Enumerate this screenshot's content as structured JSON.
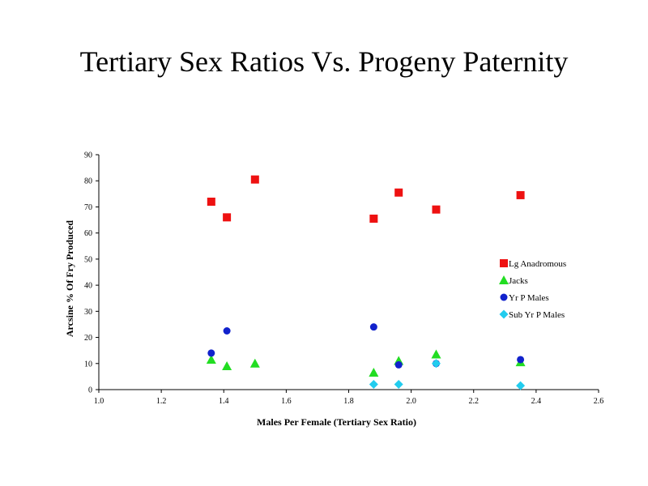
{
  "page": {
    "title": "Tertiary Sex Ratios Vs. Progeny Paternity"
  },
  "chart_data": {
    "type": "scatter",
    "title": "Tertiary Sex Ratios Vs. Progeny Paternity",
    "xlabel": "Males Per Female (Tertiary Sex Ratio)",
    "ylabel": "Arcsine % Of Fry Produced",
    "xlim": [
      1.0,
      2.6
    ],
    "ylim": [
      0,
      90
    ],
    "x_ticks": [
      "1.0",
      "1.2",
      "1.4",
      "1.6",
      "1.8",
      "2.0",
      "2.2",
      "2.4",
      "2.6"
    ],
    "y_ticks": [
      "0",
      "10",
      "20",
      "30",
      "40",
      "50",
      "60",
      "70",
      "80",
      "90"
    ],
    "grid": false,
    "legend_position": "right",
    "series": [
      {
        "name": "Lg Anadromous",
        "marker": "square",
        "color": "#ee1111",
        "points": [
          [
            1.36,
            72
          ],
          [
            1.41,
            66
          ],
          [
            1.5,
            80.5
          ],
          [
            1.88,
            65.5
          ],
          [
            1.96,
            75.5
          ],
          [
            2.08,
            69
          ],
          [
            2.35,
            74.5
          ]
        ]
      },
      {
        "name": "Jacks",
        "marker": "triangle",
        "color": "#22dd22",
        "points": [
          [
            1.36,
            11.5
          ],
          [
            1.41,
            9
          ],
          [
            1.5,
            10
          ],
          [
            1.88,
            6.5
          ],
          [
            1.96,
            11
          ],
          [
            2.08,
            13.5
          ],
          [
            2.35,
            10.5
          ]
        ]
      },
      {
        "name": "Yr P Males",
        "marker": "circle",
        "color": "#1122cc",
        "points": [
          [
            1.36,
            14
          ],
          [
            1.41,
            22.5
          ],
          [
            1.88,
            24
          ],
          [
            1.96,
            9.5
          ],
          [
            2.08,
            10
          ],
          [
            2.35,
            11.5
          ]
        ]
      },
      {
        "name": "Sub Yr P Males",
        "marker": "diamond",
        "color": "#22ccee",
        "points": [
          [
            1.88,
            2
          ],
          [
            1.96,
            2
          ],
          [
            2.08,
            10
          ],
          [
            2.35,
            1.5
          ]
        ]
      }
    ]
  }
}
